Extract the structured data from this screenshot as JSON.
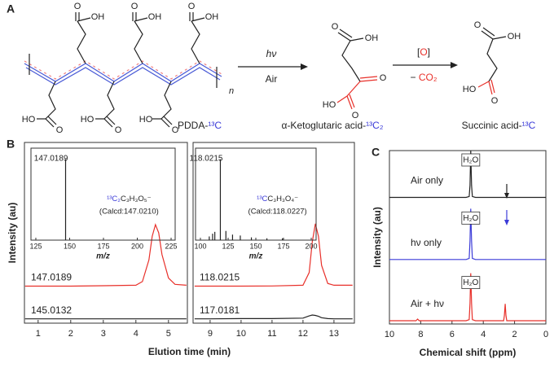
{
  "scheme": {
    "label": "A",
    "reactant": {
      "atoms": [
        {
          "text": "O"
        },
        {
          "text": "OH"
        },
        {
          "text": "O"
        },
        {
          "text": "OH"
        },
        {
          "text": "O"
        },
        {
          "text": "OH"
        },
        {
          "text": "HO"
        },
        {
          "text": "O"
        },
        {
          "text": "HO"
        },
        {
          "text": "O"
        },
        {
          "text": "HO"
        },
        {
          "text": "O"
        }
      ],
      "repeat": "n",
      "name": [
        {
          "text": "PDDA-"
        },
        {
          "text": "¹³C",
          "color": "#3b3bd8"
        }
      ]
    },
    "step1": {
      "above": "hν",
      "below": "Air"
    },
    "intermediate": {
      "atoms": [
        {
          "text": "O"
        },
        {
          "text": "OH"
        },
        {
          "text": "O",
          "color": "#e8302a"
        },
        {
          "text": "HO",
          "color": "#e8302a"
        },
        {
          "text": "O",
          "color": "#e8302a"
        }
      ],
      "name": [
        {
          "text": "α-Ketoglutaric acid-"
        },
        {
          "text": "¹³C₂",
          "color": "#3b3bd8"
        }
      ]
    },
    "step2": {
      "above": [
        {
          "text": "["
        },
        {
          "text": "O",
          "color": "#e8302a"
        },
        {
          "text": "]"
        }
      ],
      "below": [
        {
          "text": "− "
        },
        {
          "text": "CO₂",
          "color": "#e8302a"
        }
      ]
    },
    "product": {
      "atoms": [
        {
          "text": "O"
        },
        {
          "text": "OH"
        },
        {
          "text": "HO",
          "color": "#e8302a"
        },
        {
          "text": "O"
        }
      ],
      "name": [
        {
          "text": "Succinic acid-"
        },
        {
          "text": "¹³C",
          "color": "#3b3bd8"
        }
      ]
    }
  },
  "chart_data": [
    {
      "type": "line",
      "panel": "B",
      "ylabel": "Intensity (au)",
      "xlabel": "Elution time (min)",
      "xlim": [
        0.58,
        5.58
      ],
      "xticks": [
        1,
        2,
        3,
        4,
        5
      ],
      "ylim": [
        0,
        100
      ],
      "series": [
        {
          "name": "147.0189",
          "color": "#e8302a",
          "x": [
            0.6,
            1,
            2,
            3,
            4,
            4.2,
            4.4,
            4.5,
            4.6,
            4.7,
            4.8,
            5.0,
            5.2,
            5.55
          ],
          "values": [
            20.5,
            20.5,
            20.5,
            20.7,
            21,
            23,
            35,
            48,
            54.5,
            50,
            38,
            25,
            21.5,
            21
          ]
        },
        {
          "name": "145.0132",
          "color": "#222222",
          "x": [
            0.6,
            2,
            4,
            5.55
          ],
          "values": [
            2.4,
            2.4,
            2.4,
            2.4
          ]
        }
      ],
      "inset": {
        "type": "stem",
        "xlim": [
          121.4,
          228
        ],
        "xticks": [
          125,
          150,
          175,
          200,
          225
        ],
        "ylim": [
          0,
          100
        ],
        "xlabel": "m/z",
        "x": [
          147
        ],
        "values": [
          88
        ],
        "color": "#222222",
        "peak_label": "147.0189",
        "formula": [
          {
            "text": "¹³C₂",
            "color": "#3b3bd8"
          },
          {
            "text": "C₃H₃O₅⁻"
          }
        ],
        "calcd": "(Calcd:147.0210)"
      }
    },
    {
      "type": "line",
      "xlim": [
        8.45,
        13.66
      ],
      "xticks": [
        9,
        10,
        11,
        12,
        13
      ],
      "ylim": [
        0,
        100
      ],
      "series": [
        {
          "name": "118.0215",
          "color": "#e8302a",
          "x": [
            8.5,
            9,
            10,
            11,
            12,
            12.2,
            12.3,
            12.4,
            12.5,
            12.6,
            12.8,
            13,
            13.6
          ],
          "values": [
            20.5,
            20.5,
            20.5,
            20.6,
            21,
            28,
            45,
            55,
            48,
            32,
            22,
            21,
            21
          ]
        },
        {
          "name": "117.0181",
          "color": "#222222",
          "x": [
            8.5,
            9,
            10,
            11,
            12,
            12.2,
            12.3,
            12.4,
            12.5,
            12.6,
            12.8,
            13,
            13.6
          ],
          "values": [
            2.4,
            2.4,
            2.5,
            2.5,
            2.8,
            4,
            4.5,
            4.3,
            3.8,
            3,
            2.5,
            2.4,
            2.4
          ]
        }
      ],
      "inset": {
        "type": "stem",
        "xlim": [
          95.6,
          204.4
        ],
        "xticks": [
          100,
          125,
          150,
          175,
          200
        ],
        "ylim": [
          0,
          100
        ],
        "xlabel": "m/z",
        "x": [
          108,
          111,
          113,
          118,
          123,
          129,
          136,
          146,
          160,
          174
        ],
        "values": [
          4,
          7,
          9,
          88,
          10,
          6,
          5,
          3,
          2,
          2
        ],
        "color": "#222222",
        "peak_label": "118.0215",
        "formula": [
          {
            "text": "¹³C",
            "color": "#3b3bd8"
          },
          {
            "text": "C₃H₃O₄⁻"
          }
        ],
        "calcd": "(Calcd:118.0227)"
      }
    },
    {
      "type": "line",
      "panel": "C",
      "ylabel": "Intensity (au)",
      "xlabel": "Chemical shift (ppm)",
      "xlim": [
        10,
        0
      ],
      "xticks": [
        10,
        8,
        6,
        4,
        2,
        0
      ],
      "ylim": [
        0,
        100
      ],
      "series": [
        {
          "name": "Air only",
          "color": "#222222",
          "x": [
            10,
            5.1,
            4.9,
            4.85,
            4.8,
            4.75,
            4.7,
            4.5,
            0
          ],
          "values": [
            73,
            73,
            73.5,
            80,
            100,
            80,
            73.5,
            73,
            73
          ]
        },
        {
          "name": "hν only",
          "color": "#3b3bd8",
          "x": [
            10,
            5.1,
            4.9,
            4.85,
            4.8,
            4.75,
            4.7,
            4.5,
            0
          ],
          "values": [
            37.2,
            37.2,
            37.8,
            48,
            66.5,
            48,
            37.8,
            37.2,
            37.2
          ]
        },
        {
          "name": "Air + hν",
          "color": "#e8302a",
          "x": [
            10,
            8.3,
            8.2,
            8.1,
            5.1,
            4.9,
            4.85,
            4.8,
            4.75,
            4.7,
            4.5,
            2.7,
            2.65,
            2.6,
            2.55,
            2.5,
            0
          ],
          "values": [
            1.9,
            1.9,
            2.8,
            1.9,
            1.9,
            2.5,
            12,
            29.3,
            12,
            2.5,
            1.9,
            1.9,
            5,
            11.6,
            5,
            1.9,
            1.9
          ]
        }
      ],
      "peak_labels": [
        "H₂O",
        "H₂O",
        "H₂O"
      ]
    }
  ]
}
